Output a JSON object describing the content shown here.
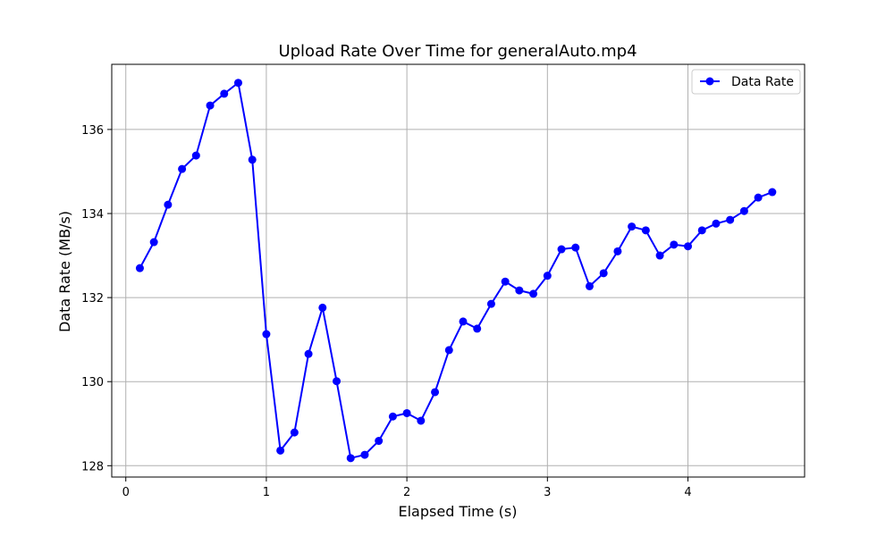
{
  "chart_data": {
    "type": "line",
    "title": "Upload Rate Over Time for generalAuto.mp4",
    "xlabel": "Elapsed Time (s)",
    "ylabel": "Data Rate (MB/s)",
    "xlim": [
      -0.1,
      4.83
    ],
    "ylim": [
      127.73,
      137.55
    ],
    "xticks": [
      0,
      1,
      2,
      3,
      4
    ],
    "yticks": [
      128,
      130,
      132,
      134,
      136
    ],
    "grid": true,
    "legend_position": "top-right",
    "series": [
      {
        "name": "Data Rate",
        "color": "#0000ff",
        "marker": "circle",
        "x": [
          0.1,
          0.2,
          0.3,
          0.4,
          0.5,
          0.6,
          0.7,
          0.8,
          0.9,
          1.0,
          1.1,
          1.2,
          1.3,
          1.4,
          1.5,
          1.6,
          1.7,
          1.8,
          1.9,
          2.0,
          2.1,
          2.2,
          2.3,
          2.4,
          2.5,
          2.6,
          2.7,
          2.8,
          2.9,
          3.0,
          3.1,
          3.2,
          3.3,
          3.4,
          3.5,
          3.6,
          3.7,
          3.8,
          3.9,
          4.0,
          4.1,
          4.2,
          4.3,
          4.4,
          4.5,
          4.6
        ],
        "y": [
          132.7,
          133.32,
          134.21,
          135.06,
          135.38,
          136.57,
          136.85,
          137.11,
          135.28,
          131.13,
          128.36,
          128.79,
          130.66,
          131.76,
          130.01,
          128.18,
          128.26,
          128.59,
          129.17,
          129.25,
          129.07,
          129.75,
          130.75,
          131.43,
          131.26,
          131.85,
          132.38,
          132.17,
          132.09,
          132.52,
          133.15,
          133.19,
          132.27,
          132.58,
          133.1,
          133.69,
          133.6,
          133.0,
          133.26,
          133.22,
          133.6,
          133.76,
          133.85,
          134.06,
          134.38,
          134.51
        ]
      }
    ]
  }
}
